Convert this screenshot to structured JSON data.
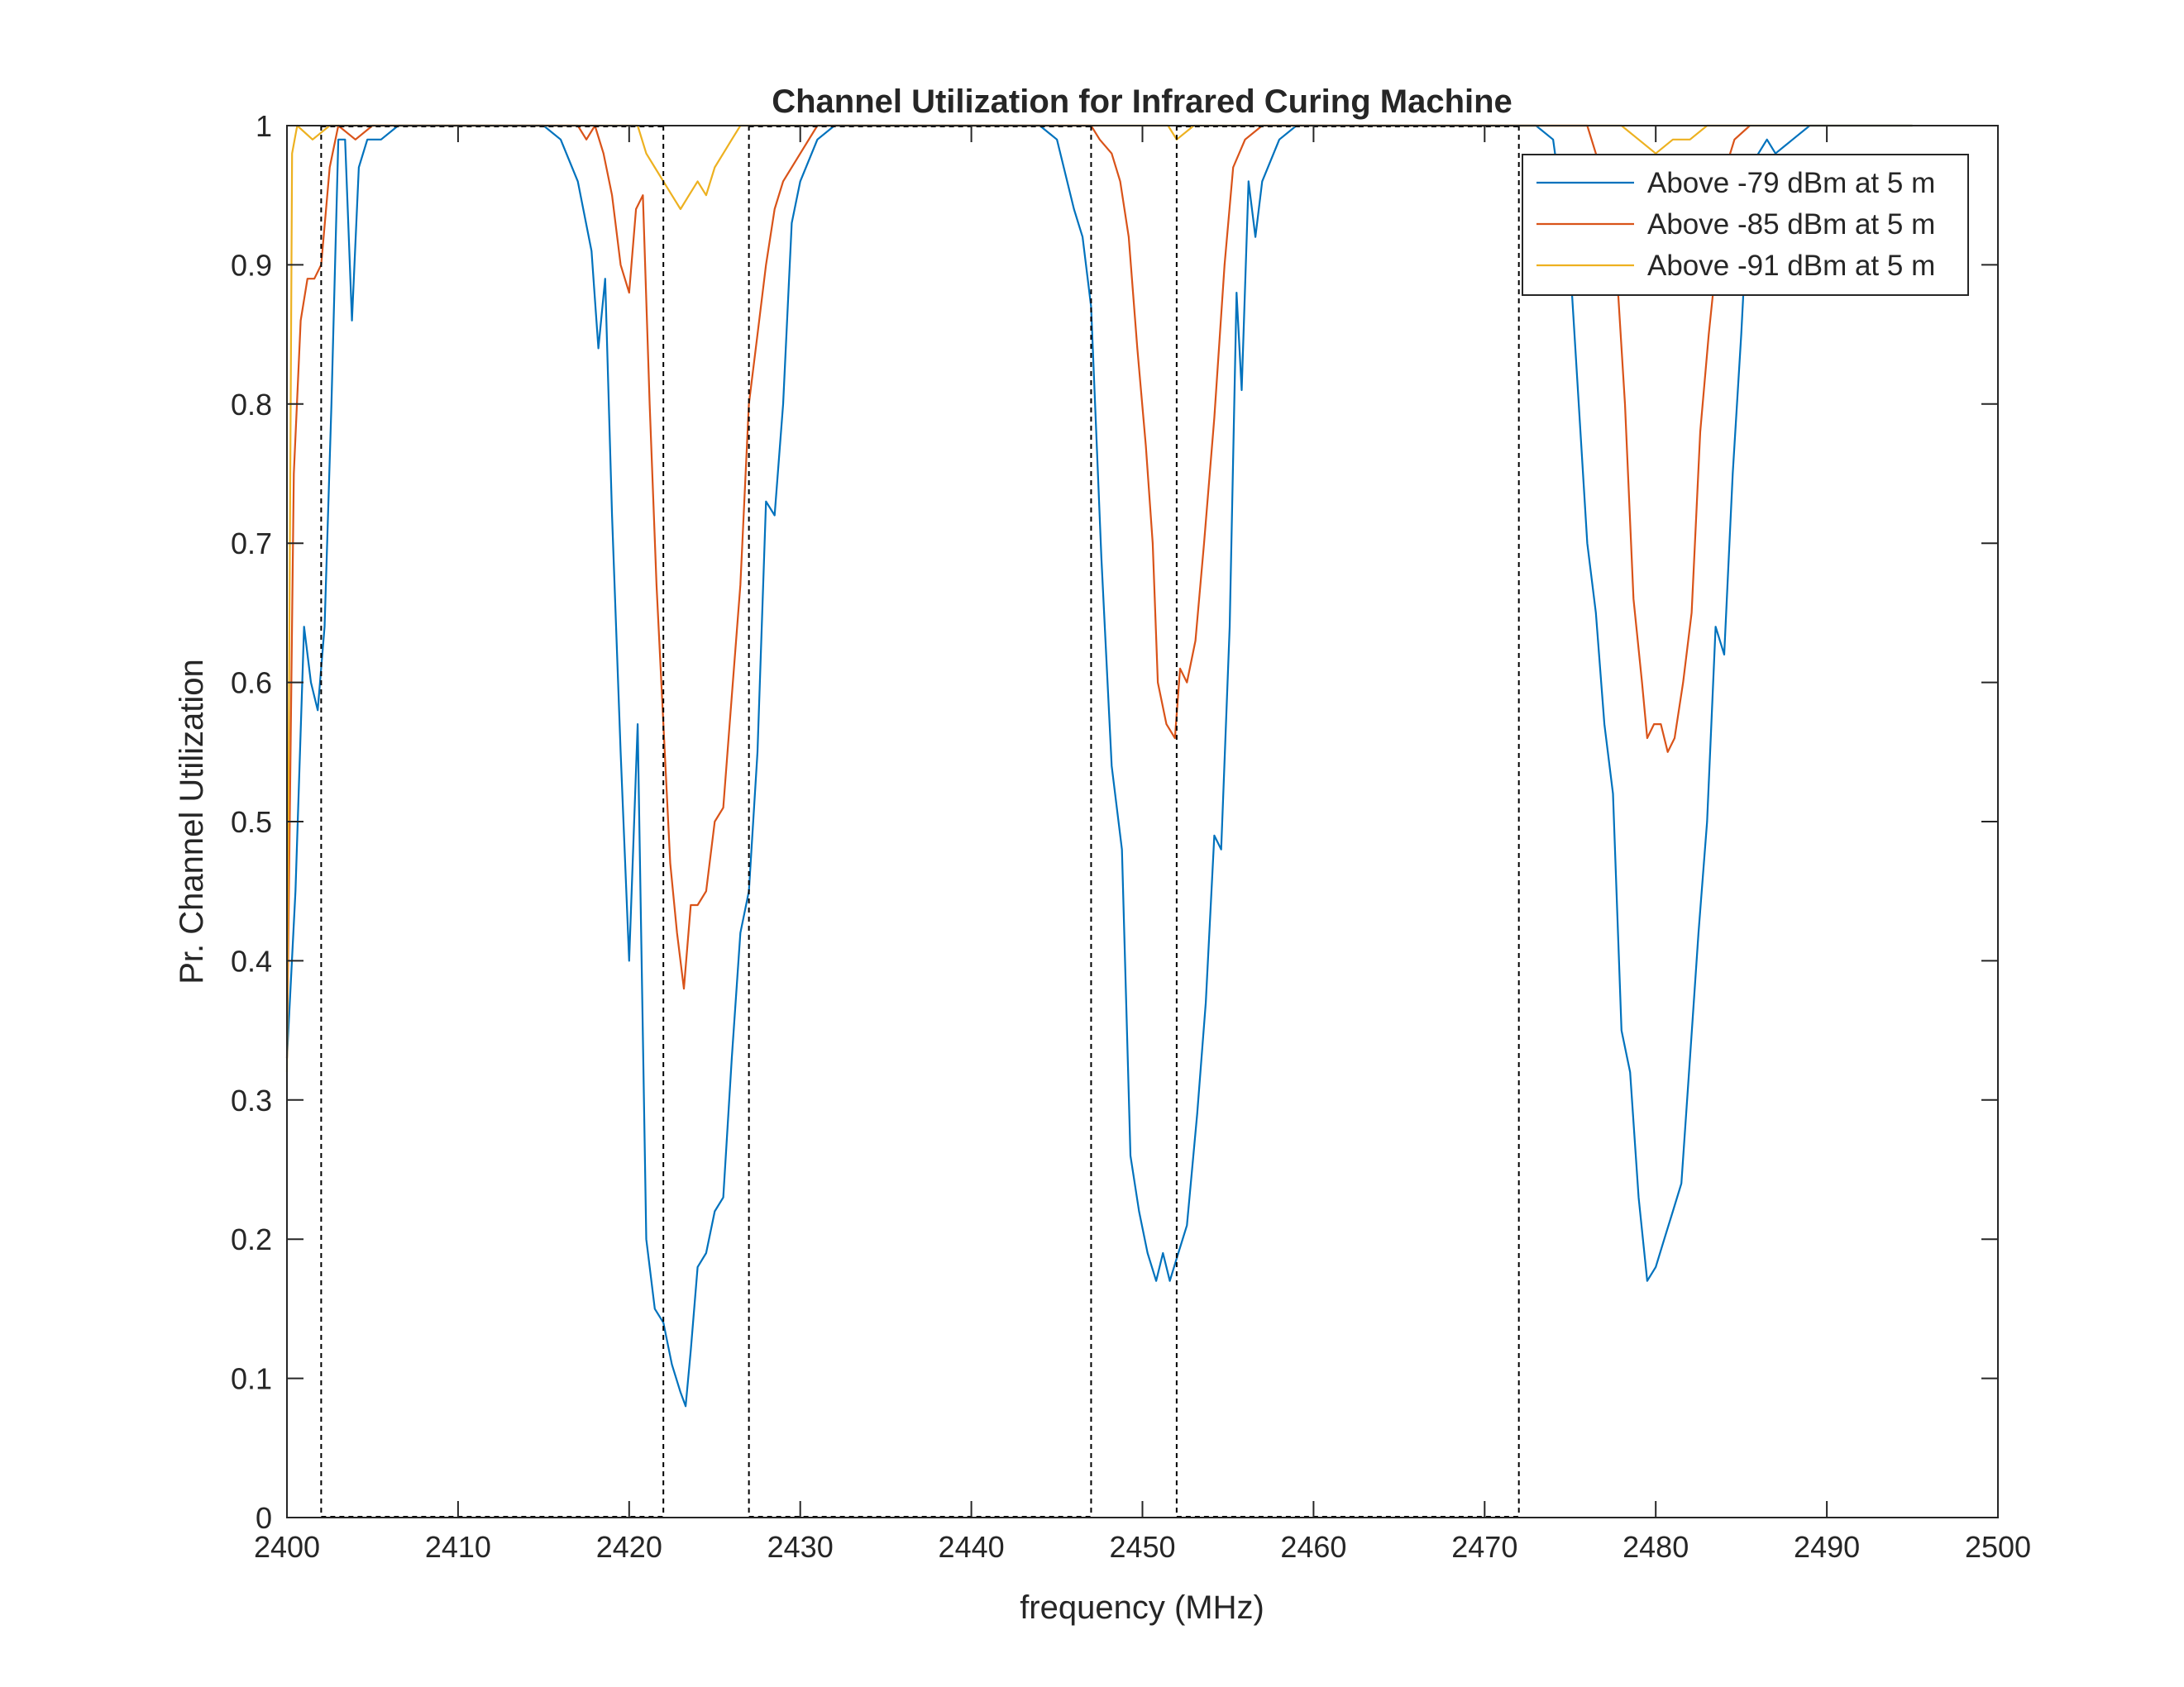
{
  "chart_data": {
    "type": "line",
    "title": "Channel Utilization for Infrared Curing Machine",
    "xlabel": "frequency (MHz)",
    "ylabel": "Pr. Channel Utilization",
    "xlim": [
      2400,
      2500
    ],
    "ylim": [
      0,
      1
    ],
    "xticks": [
      2400,
      2410,
      2420,
      2430,
      2440,
      2450,
      2460,
      2470,
      2480,
      2490,
      2500
    ],
    "yticks": [
      0,
      0.1,
      0.2,
      0.3,
      0.4,
      0.5,
      0.6,
      0.7,
      0.8,
      0.9,
      1
    ],
    "legend_position": "top-right",
    "grid": false,
    "series": [
      {
        "name": "Above -79 dBm at 5 m",
        "color": "#0072BD",
        "points": [
          [
            2400,
            0.33
          ],
          [
            2400.5,
            0.45
          ],
          [
            2401,
            0.64
          ],
          [
            2401.4,
            0.6
          ],
          [
            2401.8,
            0.58
          ],
          [
            2402.2,
            0.64
          ],
          [
            2402.6,
            0.8
          ],
          [
            2403,
            0.99
          ],
          [
            2403.4,
            0.99
          ],
          [
            2403.8,
            0.86
          ],
          [
            2404.2,
            0.97
          ],
          [
            2404.7,
            0.99
          ],
          [
            2405.5,
            0.99
          ],
          [
            2406.5,
            1.0
          ],
          [
            2415,
            1.0
          ],
          [
            2416,
            0.99
          ],
          [
            2417,
            0.96
          ],
          [
            2417.8,
            0.91
          ],
          [
            2418.2,
            0.84
          ],
          [
            2418.6,
            0.89
          ],
          [
            2419,
            0.72
          ],
          [
            2419.5,
            0.55
          ],
          [
            2420,
            0.4
          ],
          [
            2420.5,
            0.57
          ],
          [
            2421,
            0.2
          ],
          [
            2421.5,
            0.15
          ],
          [
            2422,
            0.14
          ],
          [
            2422.5,
            0.11
          ],
          [
            2423,
            0.09
          ],
          [
            2423.3,
            0.08
          ],
          [
            2423.6,
            0.12
          ],
          [
            2424,
            0.18
          ],
          [
            2424.5,
            0.19
          ],
          [
            2425,
            0.22
          ],
          [
            2425.5,
            0.23
          ],
          [
            2426,
            0.33
          ],
          [
            2426.5,
            0.42
          ],
          [
            2427,
            0.45
          ],
          [
            2427.5,
            0.55
          ],
          [
            2428,
            0.73
          ],
          [
            2428.5,
            0.72
          ],
          [
            2429,
            0.8
          ],
          [
            2429.5,
            0.93
          ],
          [
            2430,
            0.96
          ],
          [
            2431,
            0.99
          ],
          [
            2432,
            1.0
          ],
          [
            2444,
            1.0
          ],
          [
            2445,
            0.99
          ],
          [
            2446,
            0.94
          ],
          [
            2446.5,
            0.92
          ],
          [
            2447,
            0.87
          ],
          [
            2447.6,
            0.69
          ],
          [
            2448.2,
            0.54
          ],
          [
            2448.8,
            0.48
          ],
          [
            2449.3,
            0.26
          ],
          [
            2449.8,
            0.22
          ],
          [
            2450.3,
            0.19
          ],
          [
            2450.8,
            0.17
          ],
          [
            2451.2,
            0.19
          ],
          [
            2451.6,
            0.17
          ],
          [
            2452.1,
            0.19
          ],
          [
            2452.6,
            0.21
          ],
          [
            2453.2,
            0.29
          ],
          [
            2453.7,
            0.37
          ],
          [
            2454.2,
            0.49
          ],
          [
            2454.6,
            0.48
          ],
          [
            2455.1,
            0.64
          ],
          [
            2455.5,
            0.88
          ],
          [
            2455.8,
            0.81
          ],
          [
            2456.2,
            0.96
          ],
          [
            2456.6,
            0.92
          ],
          [
            2457,
            0.96
          ],
          [
            2458,
            0.99
          ],
          [
            2459,
            1.0
          ],
          [
            2473,
            1.0
          ],
          [
            2474,
            0.99
          ],
          [
            2475,
            0.9
          ],
          [
            2475.5,
            0.8
          ],
          [
            2476,
            0.7
          ],
          [
            2476.5,
            0.65
          ],
          [
            2477,
            0.57
          ],
          [
            2477.5,
            0.52
          ],
          [
            2478,
            0.35
          ],
          [
            2478.5,
            0.32
          ],
          [
            2479,
            0.23
          ],
          [
            2479.5,
            0.17
          ],
          [
            2480,
            0.18
          ],
          [
            2480.5,
            0.2
          ],
          [
            2481,
            0.22
          ],
          [
            2481.5,
            0.24
          ],
          [
            2482,
            0.33
          ],
          [
            2482.5,
            0.42
          ],
          [
            2483,
            0.5
          ],
          [
            2483.5,
            0.64
          ],
          [
            2484,
            0.62
          ],
          [
            2484.5,
            0.75
          ],
          [
            2485,
            0.85
          ],
          [
            2485.5,
            0.97
          ],
          [
            2486.5,
            0.99
          ],
          [
            2487,
            0.98
          ],
          [
            2488,
            0.99
          ],
          [
            2489,
            1.0
          ],
          [
            2495,
            1.0
          ]
        ]
      },
      {
        "name": "Above -85 dBm at 5 m",
        "color": "#D95319",
        "points": [
          [
            2400,
            0.33
          ],
          [
            2400.4,
            0.75
          ],
          [
            2400.8,
            0.86
          ],
          [
            2401.2,
            0.89
          ],
          [
            2401.6,
            0.89
          ],
          [
            2402,
            0.9
          ],
          [
            2402.5,
            0.97
          ],
          [
            2403,
            1.0
          ],
          [
            2404,
            0.99
          ],
          [
            2405,
            1.0
          ],
          [
            2417,
            1.0
          ],
          [
            2417.5,
            0.99
          ],
          [
            2418,
            1.0
          ],
          [
            2418.5,
            0.98
          ],
          [
            2419,
            0.95
          ],
          [
            2419.5,
            0.9
          ],
          [
            2420,
            0.88
          ],
          [
            2420.4,
            0.94
          ],
          [
            2420.8,
            0.95
          ],
          [
            2421.2,
            0.8
          ],
          [
            2421.6,
            0.67
          ],
          [
            2422,
            0.57
          ],
          [
            2422.4,
            0.47
          ],
          [
            2422.8,
            0.42
          ],
          [
            2423.2,
            0.38
          ],
          [
            2423.6,
            0.44
          ],
          [
            2424,
            0.44
          ],
          [
            2424.5,
            0.45
          ],
          [
            2425,
            0.5
          ],
          [
            2425.5,
            0.51
          ],
          [
            2426,
            0.59
          ],
          [
            2426.5,
            0.67
          ],
          [
            2427,
            0.8
          ],
          [
            2427.5,
            0.85
          ],
          [
            2428,
            0.9
          ],
          [
            2428.5,
            0.94
          ],
          [
            2429,
            0.96
          ],
          [
            2430,
            0.98
          ],
          [
            2431,
            1.0
          ],
          [
            2447,
            1.0
          ],
          [
            2447.5,
            0.99
          ],
          [
            2448.2,
            0.98
          ],
          [
            2448.7,
            0.96
          ],
          [
            2449.2,
            0.92
          ],
          [
            2449.7,
            0.84
          ],
          [
            2450.2,
            0.77
          ],
          [
            2450.6,
            0.7
          ],
          [
            2450.9,
            0.6
          ],
          [
            2451.4,
            0.57
          ],
          [
            2451.9,
            0.56
          ],
          [
            2452.2,
            0.61
          ],
          [
            2452.6,
            0.6
          ],
          [
            2453.1,
            0.63
          ],
          [
            2453.6,
            0.7
          ],
          [
            2454.2,
            0.79
          ],
          [
            2454.8,
            0.9
          ],
          [
            2455.3,
            0.97
          ],
          [
            2456,
            0.99
          ],
          [
            2457,
            1.0
          ],
          [
            2476,
            1.0
          ],
          [
            2476.5,
            0.98
          ],
          [
            2477.2,
            0.95
          ],
          [
            2477.7,
            0.9
          ],
          [
            2478.2,
            0.8
          ],
          [
            2478.7,
            0.66
          ],
          [
            2479.2,
            0.6
          ],
          [
            2479.5,
            0.56
          ],
          [
            2479.9,
            0.57
          ],
          [
            2480.3,
            0.57
          ],
          [
            2480.7,
            0.55
          ],
          [
            2481.1,
            0.56
          ],
          [
            2481.6,
            0.6
          ],
          [
            2482.1,
            0.65
          ],
          [
            2482.6,
            0.78
          ],
          [
            2483.1,
            0.85
          ],
          [
            2483.6,
            0.91
          ],
          [
            2484.1,
            0.97
          ],
          [
            2484.6,
            0.99
          ],
          [
            2485.5,
            1.0
          ]
        ]
      },
      {
        "name": "Above -91 dBm at 5 m",
        "color": "#EDB120",
        "points": [
          [
            2400,
            0.32
          ],
          [
            2400.3,
            0.98
          ],
          [
            2400.6,
            1.0
          ],
          [
            2401.5,
            0.99
          ],
          [
            2402.5,
            1.0
          ],
          [
            2420.5,
            1.0
          ],
          [
            2421,
            0.98
          ],
          [
            2421.5,
            0.97
          ],
          [
            2422,
            0.96
          ],
          [
            2422.5,
            0.95
          ],
          [
            2423,
            0.94
          ],
          [
            2423.5,
            0.95
          ],
          [
            2424,
            0.96
          ],
          [
            2424.5,
            0.95
          ],
          [
            2425,
            0.97
          ],
          [
            2425.5,
            0.98
          ],
          [
            2426,
            0.99
          ],
          [
            2426.5,
            1.0
          ],
          [
            2451.5,
            1.0
          ],
          [
            2452,
            0.99
          ],
          [
            2453,
            1.0
          ],
          [
            2478,
            1.0
          ],
          [
            2479,
            0.99
          ],
          [
            2480,
            0.98
          ],
          [
            2481,
            0.99
          ],
          [
            2482,
            0.99
          ],
          [
            2483,
            1.0
          ],
          [
            2495,
            1.0
          ]
        ]
      }
    ],
    "reference_lines": {
      "style": "dashed",
      "color": "#000000",
      "x": [
        2402,
        2422,
        2427,
        2447,
        2452,
        2472
      ],
      "bottom_segments": [
        [
          2402,
          2422
        ],
        [
          2427,
          2447
        ],
        [
          2452,
          2472
        ]
      ],
      "top_segments": [
        [
          2402,
          2422
        ],
        [
          2427,
          2447
        ],
        [
          2452,
          2472
        ]
      ]
    }
  }
}
